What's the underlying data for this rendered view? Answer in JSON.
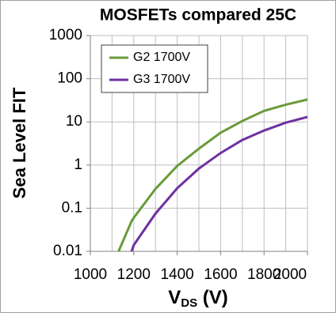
{
  "chart_data": {
    "type": "line",
    "title": "MOSFETs compared 25C",
    "y_label": "Sea Level FIT",
    "x_label": [
      "V",
      "DS",
      " (V)"
    ],
    "x": [
      1130,
      1190,
      1200,
      1300,
      1400,
      1500,
      1600,
      1700,
      1800,
      1900,
      2000
    ],
    "series": [
      {
        "name": "G2 1700V",
        "color": "#6a9a3a",
        "values": [
          0.01,
          0.05,
          0.06,
          0.28,
          0.95,
          2.4,
          5.6,
          10.5,
          18,
          25,
          33
        ]
      },
      {
        "name": "G3 1700V",
        "color": "#7030a0",
        "values": [
          null,
          0.01,
          0.014,
          0.075,
          0.29,
          0.83,
          1.9,
          3.8,
          6.3,
          9.6,
          13
        ]
      }
    ],
    "xlim": [
      1000,
      2000
    ],
    "xticks": [
      1000,
      1200,
      1400,
      1600,
      1800,
      2000
    ],
    "xminorticks": [
      1100,
      1300,
      1500,
      1700,
      1900
    ],
    "ylim": [
      0.01,
      1000
    ],
    "yticks": [
      0.01,
      0.1,
      1,
      10,
      100,
      1000
    ],
    "log_y": true,
    "grid": true,
    "legend": "upper left"
  }
}
